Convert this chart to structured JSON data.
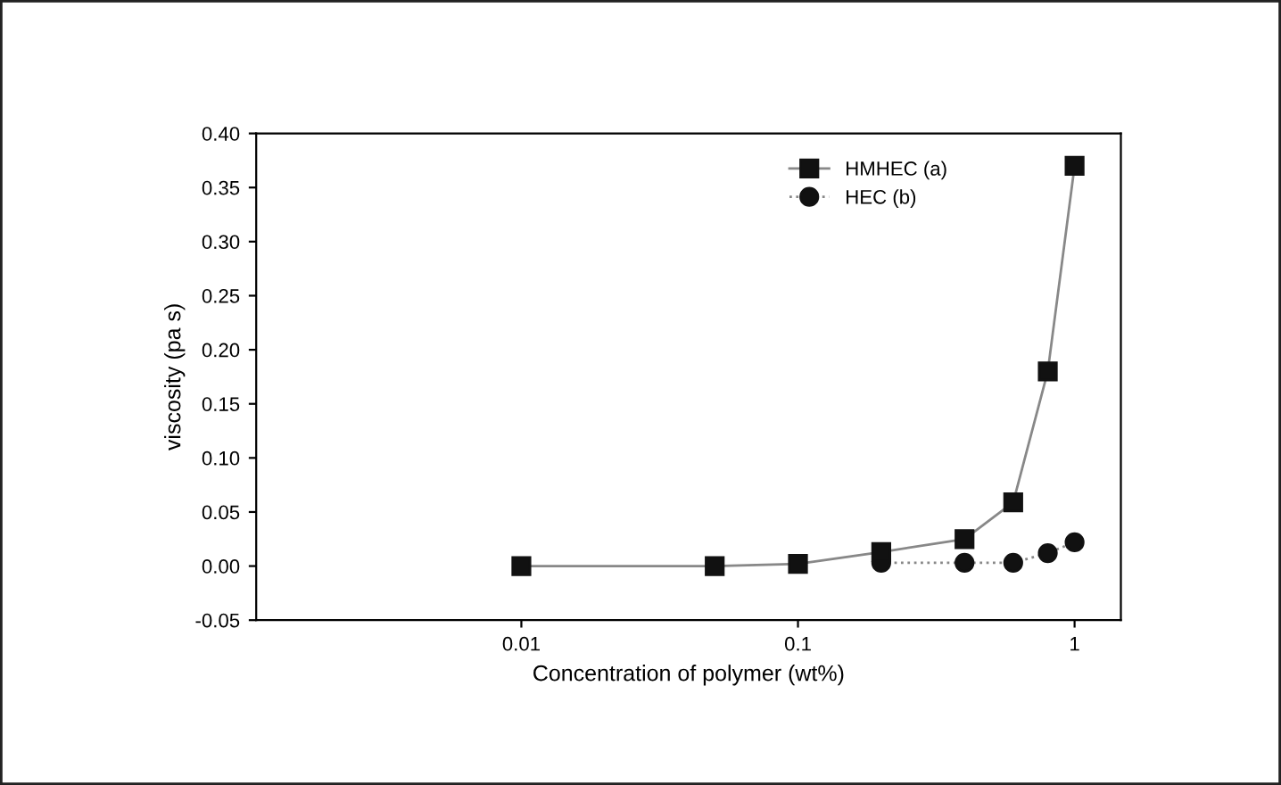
{
  "chart_data": {
    "type": "line",
    "xlabel": "Concentration of polymer (wt%)",
    "ylabel": "viscosity (pa s)",
    "log": "x",
    "xlim": [
      0.0011,
      1.47
    ],
    "xticks": [
      0.01,
      0.1,
      1
    ],
    "ylim": [
      -0.05,
      0.4
    ],
    "yticks": [
      {
        "value": -0.05,
        "label": "-0.05"
      },
      {
        "value": 0,
        "label": "0.00"
      },
      {
        "value": 0.05,
        "label": "0.05"
      },
      {
        "value": 0.1,
        "label": "0.10"
      },
      {
        "value": 0.15,
        "label": "0.15"
      },
      {
        "value": 0.2,
        "label": "0.20"
      },
      {
        "value": 0.25,
        "label": "0.25"
      },
      {
        "value": 0.3,
        "label": "0.30"
      },
      {
        "value": 0.35,
        "label": "0.35"
      },
      {
        "value": 0.4,
        "label": "0.40"
      }
    ],
    "grid": false,
    "legend": "top right",
    "series": [
      {
        "name": "HMHEC (a)",
        "color": "#111111",
        "marker": "square",
        "line_style": "solid",
        "x": [
          0.01,
          0.05,
          0.1,
          0.2,
          0.4,
          0.6,
          0.8,
          1.0
        ],
        "values": [
          0,
          0,
          0.002,
          0.013,
          0.025,
          0.059,
          0.18,
          0.37
        ]
      },
      {
        "name": "HEC (b)",
        "color": "#111111",
        "marker": "circle",
        "line_style": "dotted",
        "x": [
          0.2,
          0.4,
          0.6,
          0.8,
          1.0
        ],
        "values": [
          0.003,
          0.003,
          0.003,
          0.012,
          0.022
        ]
      }
    ]
  }
}
